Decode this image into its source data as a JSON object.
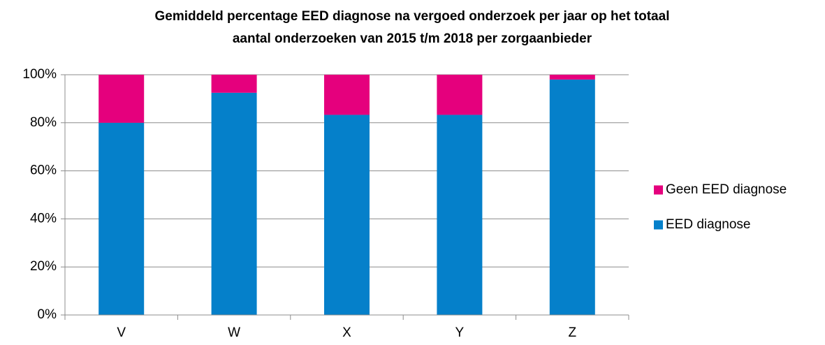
{
  "chart_data": {
    "type": "stacked_bar",
    "title": [
      "Gemiddeld percentage EED diagnose na vergoed onderzoek per jaar op het totaal",
      "aantal onderzoeken van 2015 t/m 2018 per zorgaanbieder"
    ],
    "categories": [
      "V",
      "W",
      "X",
      "Y",
      "Z"
    ],
    "series": [
      {
        "name": "EED diagnose",
        "color": "#0580CA",
        "values": [
          80,
          92.5,
          83.3,
          83.3,
          98
        ]
      },
      {
        "name": "Geen EED diagnose",
        "color": "#E5007D",
        "values": [
          20,
          7.5,
          16.7,
          16.7,
          2
        ]
      }
    ],
    "ylim": [
      0,
      100
    ],
    "yticks": [
      {
        "value": 0,
        "label": "0%"
      },
      {
        "value": 20,
        "label": "20%"
      },
      {
        "value": 40,
        "label": "40%"
      },
      {
        "value": 60,
        "label": "60%"
      },
      {
        "value": 80,
        "label": "80%"
      },
      {
        "value": 100,
        "label": "100%"
      }
    ],
    "grid": true,
    "legend": "right"
  }
}
